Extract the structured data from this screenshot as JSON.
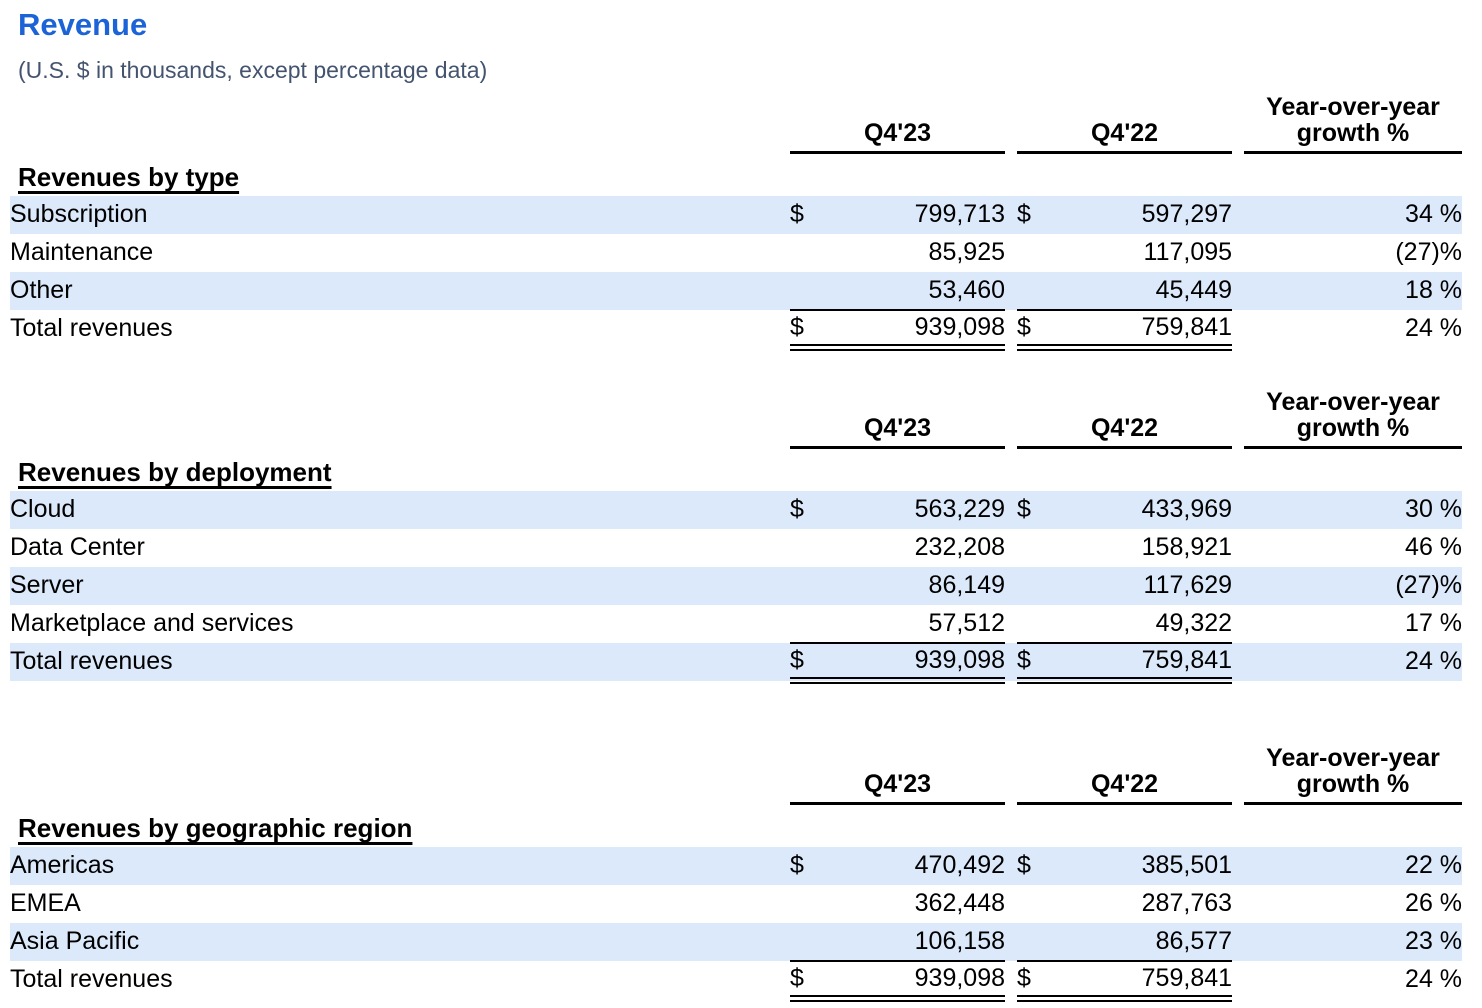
{
  "page": {
    "title": "Revenue",
    "subtitle": "(U.S. $ in thousands, except percentage data)"
  },
  "colors": {
    "title_blue": "#1d63d8",
    "subtitle_gray": "#44546f",
    "row_highlight_blue": "#dce9fb",
    "rule_black": "#000000"
  },
  "columns": {
    "col1": "Q4'23",
    "col2": "Q4'22",
    "growth_line1": "Year-over-year",
    "growth_line2": "growth %"
  },
  "sections": [
    {
      "id": "revenues-by-type",
      "heading": "Revenues by type",
      "rows": [
        {
          "label": "Subscription",
          "cur1": "$",
          "v1": "799,713",
          "cur2": "$",
          "v2": "597,297",
          "growth": "34 %",
          "highlight": true,
          "total": false
        },
        {
          "label": "Maintenance",
          "cur1": "",
          "v1": "85,925",
          "cur2": "",
          "v2": "117,095",
          "growth": "(27)%",
          "highlight": false,
          "total": false
        },
        {
          "label": "Other",
          "cur1": "",
          "v1": "53,460",
          "cur2": "",
          "v2": "45,449",
          "growth": "18 %",
          "highlight": true,
          "total": false
        },
        {
          "label": "Total revenues",
          "cur1": "$",
          "v1": "939,098",
          "cur2": "$",
          "v2": "759,841",
          "growth": "24 %",
          "highlight": false,
          "total": true
        }
      ]
    },
    {
      "id": "revenues-by-deployment",
      "heading": "Revenues by deployment",
      "rows": [
        {
          "label": "Cloud",
          "cur1": "$",
          "v1": "563,229",
          "cur2": "$",
          "v2": "433,969",
          "growth": "30 %",
          "highlight": true,
          "total": false
        },
        {
          "label": "Data Center",
          "cur1": "",
          "v1": "232,208",
          "cur2": "",
          "v2": "158,921",
          "growth": "46 %",
          "highlight": false,
          "total": false
        },
        {
          "label": "Server",
          "cur1": "",
          "v1": "86,149",
          "cur2": "",
          "v2": "117,629",
          "growth": "(27)%",
          "highlight": true,
          "total": false
        },
        {
          "label": "Marketplace and services",
          "cur1": "",
          "v1": "57,512",
          "cur2": "",
          "v2": "49,322",
          "growth": "17 %",
          "highlight": false,
          "total": false
        },
        {
          "label": "Total revenues",
          "cur1": "$",
          "v1": "939,098",
          "cur2": "$",
          "v2": "759,841",
          "growth": "24 %",
          "highlight": true,
          "total": true
        }
      ]
    },
    {
      "id": "revenues-by-geographic-region",
      "heading": "Revenues by geographic region",
      "rows": [
        {
          "label": "Americas",
          "cur1": "$",
          "v1": "470,492",
          "cur2": "$",
          "v2": "385,501",
          "growth": "22 %",
          "highlight": true,
          "total": false
        },
        {
          "label": "EMEA",
          "cur1": "",
          "v1": "362,448",
          "cur2": "",
          "v2": "287,763",
          "growth": "26 %",
          "highlight": false,
          "total": false
        },
        {
          "label": "Asia Pacific",
          "cur1": "",
          "v1": "106,158",
          "cur2": "",
          "v2": "86,577",
          "growth": "23 %",
          "highlight": true,
          "total": false
        },
        {
          "label": "Total revenues",
          "cur1": "$",
          "v1": "939,098",
          "cur2": "$",
          "v2": "759,841",
          "growth": "24 %",
          "highlight": false,
          "total": true
        }
      ]
    }
  ]
}
